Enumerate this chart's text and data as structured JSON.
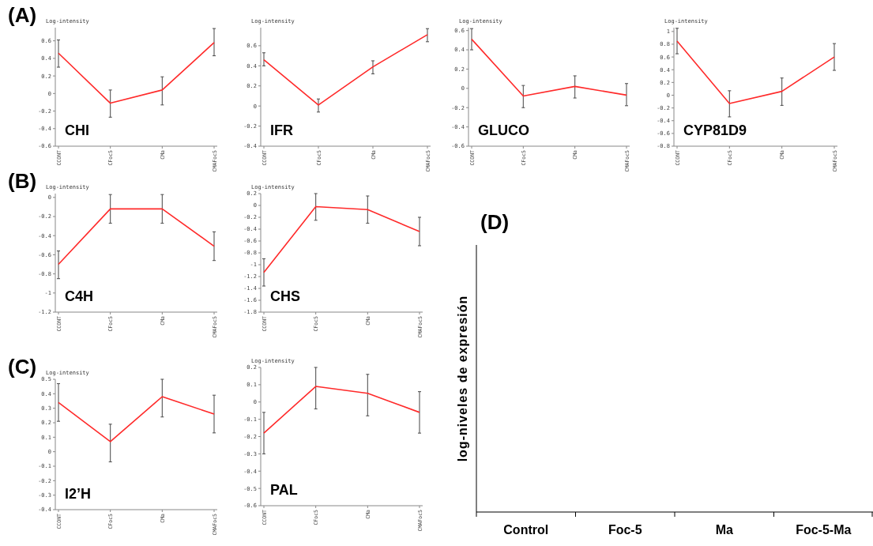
{
  "chart_data": [
    {
      "type": "line",
      "title": "CHI",
      "ylabel": "Log-intensity",
      "annotations": [
        "(A)"
      ],
      "categories": [
        "CCONT",
        "CFoc5",
        "CMa",
        "CMAFoc5"
      ],
      "series": [
        {
          "color": "#ff2a2a",
          "values": [
            0.46,
            -0.11,
            0.04,
            0.58
          ],
          "errors": [
            [
              0.3,
              0.61
            ],
            [
              -0.27,
              0.04
            ],
            [
              -0.13,
              0.19
            ],
            [
              0.43,
              0.74
            ]
          ]
        }
      ],
      "ylim": [
        -0.6,
        0.75
      ],
      "yticks": [
        -0.6,
        -0.4,
        -0.2,
        0,
        0.2,
        0.4,
        0.6
      ],
      "marker": "none"
    },
    {
      "type": "line",
      "title": "IFR",
      "ylabel": "Log-intensity",
      "categories": [
        "CCONT",
        "CFoc5",
        "CMa",
        "CMAFoc5"
      ],
      "series": [
        {
          "color": "#ff2a2a",
          "values": [
            0.46,
            0.01,
            0.39,
            0.71
          ],
          "errors": [
            [
              0.4,
              0.53
            ],
            [
              -0.06,
              0.07
            ],
            [
              0.32,
              0.45
            ],
            [
              0.64,
              0.77
            ]
          ]
        }
      ],
      "ylim": [
        -0.4,
        0.78
      ],
      "yticks": [
        -0.4,
        -0.2,
        0,
        0.2,
        0.4,
        0.6
      ],
      "marker": "none"
    },
    {
      "type": "line",
      "title": "GLUCO",
      "ylabel": "Log-intensity",
      "categories": [
        "CCONT",
        "CFoc5",
        "CMa",
        "CMAFoc5"
      ],
      "series": [
        {
          "color": "#ff2a2a",
          "values": [
            0.51,
            -0.08,
            0.02,
            -0.07
          ],
          "errors": [
            [
              0.4,
              0.62
            ],
            [
              -0.2,
              0.03
            ],
            [
              -0.1,
              0.13
            ],
            [
              -0.18,
              0.05
            ]
          ]
        }
      ],
      "ylim": [
        -0.6,
        0.63
      ],
      "yticks": [
        -0.6,
        -0.4,
        -0.2,
        0,
        0.2,
        0.4,
        0.6
      ],
      "marker": "none"
    },
    {
      "type": "line",
      "title": "CYP81D9",
      "ylabel": "Log-intensity",
      "categories": [
        "CCONT",
        "CFoc5",
        "CMa",
        "CMAFoc5"
      ],
      "series": [
        {
          "color": "#ff2a2a",
          "values": [
            0.85,
            -0.13,
            0.06,
            0.6
          ],
          "errors": [
            [
              0.65,
              1.05
            ],
            [
              -0.34,
              0.07
            ],
            [
              -0.16,
              0.27
            ],
            [
              0.39,
              0.81
            ]
          ]
        }
      ],
      "ylim": [
        -0.8,
        1.06
      ],
      "yticks": [
        -0.8,
        -0.6,
        -0.4,
        -0.2,
        0,
        0.2,
        0.4,
        0.6,
        0.8,
        1
      ],
      "marker": "none"
    },
    {
      "type": "line",
      "title": "C4H",
      "ylabel": "Log-intensity",
      "annotations": [
        "(B)"
      ],
      "categories": [
        "CCONT",
        "CFoc5",
        "CMa",
        "CMAFoc5"
      ],
      "series": [
        {
          "color": "#ff2a2a",
          "values": [
            -0.7,
            -0.12,
            -0.12,
            -0.51
          ],
          "errors": [
            [
              -0.85,
              -0.56
            ],
            [
              -0.27,
              0.03
            ],
            [
              -0.27,
              0.03
            ],
            [
              -0.66,
              -0.36
            ]
          ]
        }
      ],
      "ylim": [
        -1.2,
        0.04
      ],
      "yticks": [
        -1.2,
        -1,
        -0.8,
        -0.6,
        -0.4,
        -0.2,
        0
      ],
      "marker": "none"
    },
    {
      "type": "line",
      "title": "CHS",
      "ylabel": "Log-intensity",
      "categories": [
        "CCONT",
        "CFoc5",
        "CMa",
        "CMAFoc5"
      ],
      "series": [
        {
          "color": "#ff2a2a",
          "values": [
            -1.13,
            -0.02,
            -0.07,
            -0.44
          ],
          "errors": [
            [
              -1.36,
              -0.9
            ],
            [
              -0.25,
              0.2
            ],
            [
              -0.3,
              0.16
            ],
            [
              -0.68,
              -0.2
            ]
          ]
        }
      ],
      "ylim": [
        -1.8,
        0.2
      ],
      "yticks": [
        -1.8,
        -1.6,
        -1.4,
        -1.2,
        -1,
        -0.8,
        -0.6,
        -0.4,
        -0.2,
        0,
        0.2
      ],
      "marker": "none"
    },
    {
      "type": "line",
      "title": "I2’H",
      "ylabel": "Log-intensity",
      "annotations": [
        "(C)"
      ],
      "categories": [
        "CCONT",
        "CFoc5",
        "CMa",
        "CMAFoc5"
      ],
      "series": [
        {
          "color": "#ff2a2a",
          "values": [
            0.34,
            0.07,
            0.38,
            0.26
          ],
          "errors": [
            [
              0.21,
              0.47
            ],
            [
              -0.07,
              0.19
            ],
            [
              0.24,
              0.5
            ],
            [
              0.13,
              0.39
            ]
          ]
        }
      ],
      "ylim": [
        -0.4,
        0.5
      ],
      "yticks": [
        -0.4,
        -0.3,
        -0.2,
        -0.1,
        0,
        0.1,
        0.2,
        0.3,
        0.4,
        0.5
      ],
      "marker": "none"
    },
    {
      "type": "line",
      "title": "PAL",
      "ylabel": "Log-intensity",
      "categories": [
        "CCONT",
        "CFoc5",
        "CMa",
        "CMAFoc5"
      ],
      "series": [
        {
          "color": "#ff2a2a",
          "values": [
            -0.18,
            0.09,
            0.05,
            -0.06
          ],
          "errors": [
            [
              -0.3,
              -0.06
            ],
            [
              -0.04,
              0.2
            ],
            [
              -0.08,
              0.16
            ],
            [
              -0.18,
              0.06
            ]
          ]
        }
      ],
      "ylim": [
        -0.6,
        0.2
      ],
      "yticks": [
        -0.6,
        -0.5,
        -0.4,
        -0.3,
        -0.2,
        -0.1,
        0,
        0.1,
        0.2
      ],
      "marker": "none"
    },
    {
      "type": "other",
      "title": "(D)",
      "ylabel": "log-niveles de expresión",
      "categories": [
        "Control",
        "Foc-5",
        "Ma",
        "Foc-5-Ma"
      ]
    }
  ]
}
